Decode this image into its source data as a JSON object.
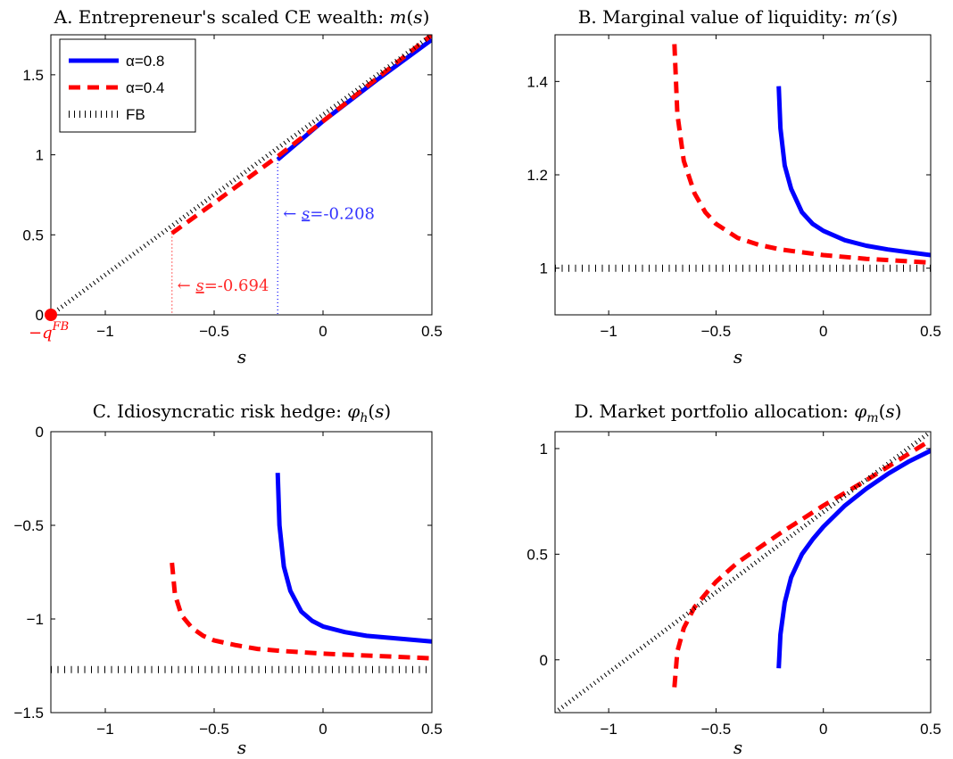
{
  "colors": {
    "alpha08": "#0000ff",
    "alpha04": "#ff0000",
    "fb": "#000000",
    "annot_blue": "#3333ff",
    "annot_red": "#ff2a2a"
  },
  "legend": [
    {
      "label": "α=0.8",
      "style": "solid",
      "color": "#0000ff"
    },
    {
      "label": "α=0.4",
      "style": "dashed",
      "color": "#ff0000"
    },
    {
      "label": "FB",
      "style": "dotted",
      "color": "#000000"
    }
  ],
  "chart_data": [
    {
      "id": "A",
      "type": "line",
      "title": "A. Entrepreneur's scaled CE wealth: m(s)",
      "xlabel": "s",
      "ylabel": "",
      "xlim": [
        -1.25,
        0.5
      ],
      "ylim": [
        0,
        1.75
      ],
      "xticks": [
        -1,
        -0.5,
        0,
        0.5
      ],
      "xtick_labels": [
        "−1",
        "−0.5",
        "0",
        "0.5"
      ],
      "yticks": [
        0,
        0.5,
        1,
        1.5
      ],
      "ytick_labels": [
        "0",
        "0.5",
        "1",
        "1.5"
      ],
      "legend_position": "top-left",
      "series": [
        {
          "name": "α=0.8",
          "style": "solid",
          "x": [
            -0.208,
            0.0,
            0.25,
            0.5
          ],
          "y": [
            0.97,
            1.21,
            1.47,
            1.72
          ]
        },
        {
          "name": "α=0.4",
          "style": "dashed",
          "x": [
            -0.694,
            -0.5,
            -0.208,
            0.0,
            0.25,
            0.5
          ],
          "y": [
            0.51,
            0.7,
            0.99,
            1.21,
            1.48,
            1.75
          ]
        },
        {
          "name": "FB",
          "style": "dotted",
          "x": [
            -1.25,
            0.5
          ],
          "y": [
            0.0,
            1.75
          ]
        }
      ],
      "annotations": [
        {
          "text": "← s=-0.208",
          "x": -0.208,
          "color": "#3333ff",
          "vline_top": 0.97
        },
        {
          "text": "← s=-0.694",
          "x": -0.694,
          "color": "#ff2a2a",
          "vline_top": 0.51
        },
        {
          "text": "−q^FB",
          "x": -1.25,
          "y": 0,
          "marker": true,
          "color": "#ff0000"
        }
      ]
    },
    {
      "id": "B",
      "type": "line",
      "title": "B. Marginal value of liquidity: m′(s)",
      "xlabel": "s",
      "ylabel": "",
      "xlim": [
        -1.25,
        0.5
      ],
      "ylim": [
        0.9,
        1.5
      ],
      "xticks": [
        -1,
        -0.5,
        0,
        0.5
      ],
      "xtick_labels": [
        "−1",
        "−0.5",
        "0",
        "0.5"
      ],
      "yticks": [
        1,
        1.2,
        1.4
      ],
      "ytick_labels": [
        "1",
        "1.2",
        "1.4"
      ],
      "series": [
        {
          "name": "α=0.8",
          "style": "solid",
          "x": [
            -0.208,
            -0.2,
            -0.18,
            -0.15,
            -0.1,
            -0.05,
            0.0,
            0.1,
            0.2,
            0.3,
            0.4,
            0.5
          ],
          "y": [
            1.39,
            1.3,
            1.22,
            1.17,
            1.12,
            1.095,
            1.08,
            1.06,
            1.048,
            1.04,
            1.034,
            1.028
          ]
        },
        {
          "name": "α=0.4",
          "style": "dashed",
          "x": [
            -0.694,
            -0.68,
            -0.65,
            -0.6,
            -0.55,
            -0.5,
            -0.4,
            -0.3,
            -0.2,
            0.0,
            0.2,
            0.5
          ],
          "y": [
            1.48,
            1.33,
            1.23,
            1.16,
            1.12,
            1.095,
            1.065,
            1.05,
            1.04,
            1.028,
            1.02,
            1.012
          ]
        },
        {
          "name": "FB",
          "style": "dotted",
          "x": [
            -1.25,
            0.5
          ],
          "y": [
            1.0,
            1.0
          ]
        }
      ]
    },
    {
      "id": "C",
      "type": "line",
      "title": "C. Idiosyncratic risk hedge: φh(s)",
      "xlabel": "s",
      "ylabel": "",
      "xlim": [
        -1.25,
        0.5
      ],
      "ylim": [
        -1.5,
        0
      ],
      "xticks": [
        -1,
        -0.5,
        0,
        0.5
      ],
      "xtick_labels": [
        "−1",
        "−0.5",
        "0",
        "0.5"
      ],
      "yticks": [
        -1.5,
        -1,
        -0.5,
        0
      ],
      "ytick_labels": [
        "−1.5",
        "−1",
        "−0.5",
        "0"
      ],
      "series": [
        {
          "name": "α=0.8",
          "style": "solid",
          "x": [
            -0.208,
            -0.2,
            -0.18,
            -0.15,
            -0.1,
            -0.05,
            0.0,
            0.1,
            0.2,
            0.3,
            0.4,
            0.5
          ],
          "y": [
            -0.22,
            -0.5,
            -0.72,
            -0.85,
            -0.96,
            -1.01,
            -1.04,
            -1.07,
            -1.09,
            -1.1,
            -1.11,
            -1.12
          ]
        },
        {
          "name": "α=0.4",
          "style": "dashed",
          "x": [
            -0.694,
            -0.68,
            -0.65,
            -0.6,
            -0.55,
            -0.5,
            -0.4,
            -0.3,
            -0.2,
            0.0,
            0.2,
            0.5
          ],
          "y": [
            -0.7,
            -0.87,
            -0.98,
            -1.05,
            -1.09,
            -1.115,
            -1.14,
            -1.16,
            -1.17,
            -1.185,
            -1.195,
            -1.21
          ]
        },
        {
          "name": "FB",
          "style": "dotted",
          "x": [
            -1.25,
            0.5
          ],
          "y": [
            -1.27,
            -1.27
          ]
        }
      ]
    },
    {
      "id": "D",
      "type": "line",
      "title": "D. Market portfolio allocation: φm(s)",
      "xlabel": "s",
      "ylabel": "",
      "xlim": [
        -1.25,
        0.5
      ],
      "ylim": [
        -0.25,
        1.08
      ],
      "xticks": [
        -1,
        -0.5,
        0,
        0.5
      ],
      "xtick_labels": [
        "−1",
        "−0.5",
        "0",
        "0.5"
      ],
      "yticks": [
        0,
        0.5,
        1
      ],
      "ytick_labels": [
        "0",
        "0.5",
        "1"
      ],
      "series": [
        {
          "name": "α=0.8",
          "style": "solid",
          "x": [
            -0.208,
            -0.2,
            -0.18,
            -0.15,
            -0.1,
            -0.05,
            0.0,
            0.1,
            0.2,
            0.3,
            0.4,
            0.5
          ],
          "y": [
            -0.04,
            0.12,
            0.27,
            0.39,
            0.5,
            0.57,
            0.63,
            0.73,
            0.81,
            0.88,
            0.94,
            0.99
          ]
        },
        {
          "name": "α=0.4",
          "style": "dashed",
          "x": [
            -0.694,
            -0.68,
            -0.65,
            -0.6,
            -0.55,
            -0.5,
            -0.4,
            -0.3,
            -0.2,
            0.0,
            0.2,
            0.5
          ],
          "y": [
            -0.13,
            0.04,
            0.15,
            0.25,
            0.31,
            0.37,
            0.46,
            0.53,
            0.6,
            0.73,
            0.85,
            1.04
          ]
        },
        {
          "name": "FB",
          "style": "dotted",
          "x": [
            -1.25,
            0.5
          ],
          "y": [
            -0.25,
            1.08
          ]
        }
      ]
    }
  ]
}
